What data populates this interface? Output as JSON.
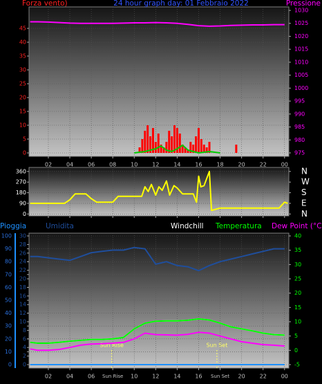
{
  "chart_data": [
    {
      "type": "line",
      "title": "24 hour graph day: 01 Febbraio 2022",
      "y_label": "Forza vento)",
      "y2_label": "Pressione",
      "xlim": [
        0.2,
        24.4
      ],
      "xticks": [
        {
          "value": 2,
          "label": "02"
        },
        {
          "value": 4,
          "label": "04"
        },
        {
          "value": 6,
          "label": "06"
        },
        {
          "value": 8,
          "label": "08"
        },
        10,
        12,
        14,
        16,
        18,
        20,
        22,
        {
          "value": 24,
          "label": "00"
        }
      ],
      "ylim": [
        -1.25,
        52.75
      ],
      "yticks": [
        0,
        5,
        10,
        15,
        20,
        25,
        30,
        35,
        40,
        45
      ],
      "y2lim": [
        973.66,
        1031.34
      ],
      "y2ticks": [
        975,
        980,
        985,
        990,
        995,
        1000,
        1005,
        1010,
        1015,
        1020,
        1025,
        1030
      ],
      "grid": "y",
      "ytick_color": "#ff2020",
      "y2tick_color": "#ff00ff",
      "xtick_color": "#c0c0c0",
      "series": [
        {
          "type": "bar",
          "color": "#ff0000",
          "x": [
            10.5,
            10.75,
            11,
            11.25,
            11.5,
            11.75,
            12,
            12.25,
            12.5,
            12.75,
            13,
            13.25,
            13.5,
            13.75,
            14,
            14.25,
            14.5,
            14.75,
            15,
            15.25,
            15.5,
            15.75,
            16,
            16.25,
            16.5,
            16.75,
            17,
            19.5
          ],
          "values": [
            2,
            5,
            8,
            10,
            6,
            9,
            4,
            7,
            3,
            2,
            4,
            8,
            6,
            10,
            9,
            7,
            3,
            2,
            1,
            4,
            3,
            6,
            9,
            5,
            3,
            2,
            4,
            3
          ]
        },
        {
          "type": "line",
          "color": "#00cc00",
          "x": [
            10,
            11,
            12,
            12.5,
            13,
            13.5,
            14,
            14.5,
            15,
            16,
            17,
            18
          ],
          "values": [
            0,
            0.5,
            1.5,
            2.5,
            1,
            0.5,
            1.5,
            2.8,
            1,
            0,
            0.5,
            0
          ]
        },
        {
          "type": "line",
          "color": "#ff00ff",
          "axis": "y2",
          "x": [
            0.3,
            1,
            2,
            3,
            4,
            5,
            6,
            7,
            8,
            9,
            10,
            11,
            12,
            13,
            14,
            15,
            16,
            17,
            18,
            19,
            20,
            21,
            22,
            23,
            24
          ],
          "values": [
            1025.6,
            1025.6,
            1025.5,
            1025.3,
            1025.1,
            1025,
            1025,
            1025,
            1025,
            1025.1,
            1025.2,
            1025.2,
            1025.3,
            1025.2,
            1025,
            1024.6,
            1024.1,
            1023.9,
            1024,
            1024.2,
            1024.3,
            1024.4,
            1024.4,
            1024.5,
            1024.5
          ]
        }
      ]
    },
    {
      "type": "line",
      "xlim": [
        0.2,
        24.4
      ],
      "xticks": [
        2,
        4,
        6,
        8,
        10,
        12,
        14,
        16,
        18,
        20,
        22,
        24
      ],
      "show_xtick_labels": false,
      "ylim": [
        -16,
        394
      ],
      "yticks": [
        0,
        90,
        180,
        270,
        360
      ],
      "y2lim": [
        -16,
        394
      ],
      "y2ticks": [
        {
          "value": 360,
          "label": "N"
        },
        {
          "value": 270,
          "label": "W"
        },
        {
          "value": 180,
          "label": "S"
        },
        {
          "value": 90,
          "label": "E"
        },
        {
          "value": 0,
          "label": "N"
        }
      ],
      "grid": "y",
      "ytick_color": "#ffffff",
      "y2tick_color": "#ffffff",
      "series": [
        {
          "type": "line",
          "color": "#ffff00",
          "x": [
            0.3,
            3.5,
            4,
            4.5,
            5.5,
            6,
            6.5,
            7,
            8,
            8.5,
            10.7,
            11,
            11.3,
            11.6,
            12,
            12.3,
            12.6,
            13,
            13.3,
            13.7,
            14,
            14.5,
            15,
            15.5,
            15.8,
            16,
            16.2,
            16.5,
            17,
            17.2,
            18,
            23.5,
            24,
            24.3
          ],
          "values": [
            90,
            90,
            120,
            170,
            170,
            130,
            100,
            100,
            100,
            150,
            150,
            230,
            190,
            250,
            160,
            230,
            200,
            280,
            160,
            240,
            220,
            170,
            170,
            170,
            100,
            320,
            230,
            240,
            360,
            30,
            50,
            50,
            100,
            90
          ]
        }
      ]
    },
    {
      "type": "line",
      "xlim": [
        0.2,
        24.4
      ],
      "xticks": [
        {
          "value": 2,
          "label": "02"
        },
        {
          "value": 4,
          "label": "04"
        },
        {
          "value": 6,
          "label": "06"
        },
        {
          "value": 8,
          "label": "Sun Rise"
        },
        10,
        12,
        14,
        16,
        {
          "value": 18,
          "label": "Sun Set"
        },
        20,
        22,
        {
          "value": 24,
          "label": "00"
        }
      ],
      "ylim": [
        -0.806,
        30.645
      ],
      "yticks": [
        0,
        2,
        4,
        6,
        8,
        10,
        12,
        14,
        16,
        18,
        20,
        22,
        24,
        26,
        28,
        30
      ],
      "y3lim": [
        -2.69,
        102.15
      ],
      "y3ticks": [
        0,
        10,
        20,
        30,
        40,
        50,
        60,
        70,
        80,
        90,
        100
      ],
      "y2lim": [
        -6.21,
        40.97
      ],
      "y2ticks": [
        -5,
        0,
        5,
        10,
        15,
        20,
        25,
        30,
        35,
        40
      ],
      "grid": "y3",
      "ytick_color": "#1f4e9c",
      "y3tick_color": "#2a6fdb",
      "y2tick_color": "#00ff00",
      "xtick_color": "#c0c0c0",
      "annotations": [
        {
          "text": "Sun Rise",
          "x": 7.9
        },
        {
          "text": "Sun Set",
          "x": 17.7
        }
      ],
      "series": [
        {
          "name": "Pioggia",
          "type": "line",
          "color": "#1e90ff",
          "axis": "y",
          "x": [
            0.3,
            1,
            2,
            3,
            4,
            5,
            6,
            7,
            8,
            9,
            10,
            11,
            12,
            13,
            14,
            15,
            16,
            17,
            18,
            19,
            20,
            21,
            22,
            23,
            24
          ],
          "values": [
            0,
            0,
            0,
            0,
            0,
            0,
            0,
            0,
            0,
            0,
            0,
            0,
            0,
            0,
            0,
            0,
            0,
            0,
            0,
            0,
            0,
            0,
            0,
            0,
            0
          ]
        },
        {
          "name": "Umidita",
          "type": "line",
          "color": "#1f4e9c",
          "axis": "y3",
          "x": [
            0.3,
            1,
            2,
            3,
            4,
            5,
            6,
            7,
            8,
            9,
            10,
            11,
            12,
            13,
            14,
            15,
            16,
            17,
            18,
            19,
            20,
            21,
            22,
            23,
            24
          ],
          "values": [
            84,
            84,
            83,
            82,
            81,
            84,
            87,
            88,
            89,
            89,
            91,
            90,
            78,
            80,
            77,
            76,
            73,
            77,
            80,
            82,
            84,
            86,
            88,
            90,
            90
          ]
        },
        {
          "name": "Windchill",
          "type": "line",
          "color": "#ffffff",
          "axis": "y2",
          "x": [
            0.3,
            1,
            2,
            3,
            4,
            5,
            6,
            7,
            8,
            9,
            10,
            11,
            12,
            13,
            14,
            15,
            16,
            17,
            18,
            19,
            20,
            21,
            22,
            23,
            24
          ],
          "values": [
            2.8,
            2.5,
            2.5,
            2.8,
            3.2,
            3.5,
            3.8,
            3.8,
            4,
            4.5,
            7.5,
            9.5,
            10.2,
            10.3,
            10.3,
            10.5,
            11,
            10.6,
            9.5,
            8.2,
            7.5,
            6.8,
            6,
            5.5,
            5.3
          ]
        },
        {
          "name": "Temperatura",
          "type": "line",
          "color": "#00ff00",
          "axis": "y2",
          "x": [
            0.3,
            1,
            2,
            3,
            4,
            5,
            6,
            7,
            8,
            9,
            10,
            11,
            12,
            13,
            14,
            15,
            16,
            17,
            18,
            19,
            20,
            21,
            22,
            23,
            24
          ],
          "values": [
            2.8,
            2.5,
            2.5,
            2.8,
            3.2,
            3.5,
            3.8,
            3.8,
            4,
            4.5,
            7.5,
            9.5,
            10.2,
            10.3,
            10.3,
            10.5,
            11,
            10.6,
            9.5,
            8.2,
            7.5,
            6.8,
            6,
            5.5,
            5.3
          ]
        },
        {
          "name": "Dew Point (°C)",
          "type": "line",
          "color": "#ff00ff",
          "axis": "y2",
          "x": [
            0.3,
            1,
            2,
            3,
            4,
            5,
            6,
            7,
            8,
            9,
            10,
            11,
            12,
            13,
            14,
            15,
            16,
            17,
            18,
            19,
            20,
            21,
            22,
            23,
            24
          ],
          "values": [
            0.5,
            0,
            0,
            0.3,
            1,
            1.8,
            2.2,
            2.3,
            2.5,
            2.8,
            4,
            6,
            5.5,
            5.4,
            5.3,
            5.6,
            6.3,
            6,
            5,
            4,
            3,
            2.5,
            2,
            1.8,
            1.5
          ]
        }
      ]
    }
  ]
}
